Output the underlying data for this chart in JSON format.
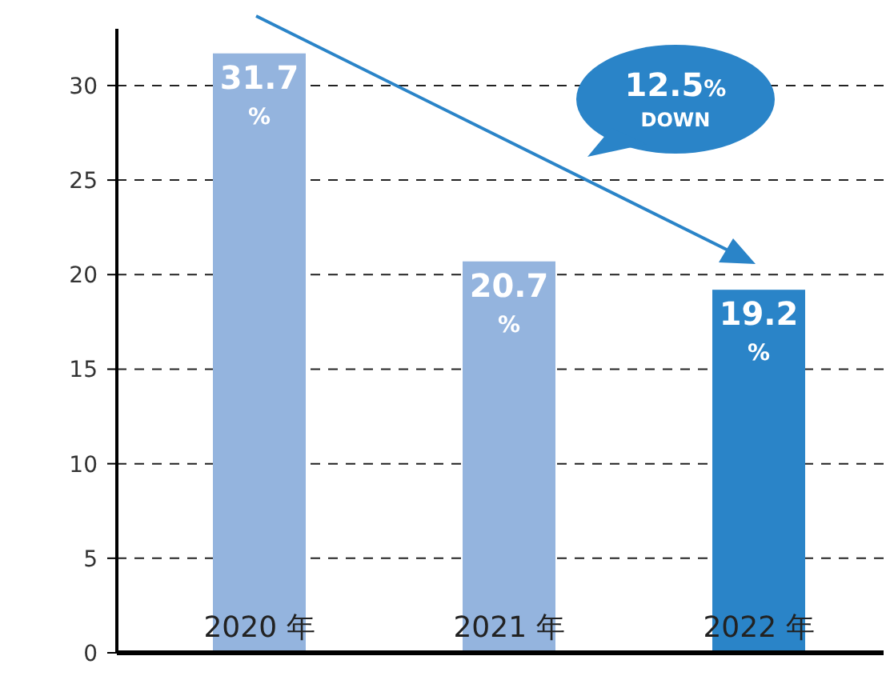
{
  "chart_data": {
    "type": "bar",
    "categories": [
      "2020 年",
      "2021 年",
      "2022 年"
    ],
    "values": [
      31.7,
      20.7,
      19.2
    ],
    "colors": [
      "#94b4de",
      "#94b4de",
      "#2a84c8"
    ],
    "value_labels": [
      "31.7%",
      "20.7%",
      "19.2%"
    ],
    "ylim": [
      0,
      33
    ],
    "yticks": [
      0,
      5,
      10,
      15,
      20,
      25,
      30
    ],
    "grid": "y",
    "annotations": [
      "12.5% DOWN"
    ]
  }
}
